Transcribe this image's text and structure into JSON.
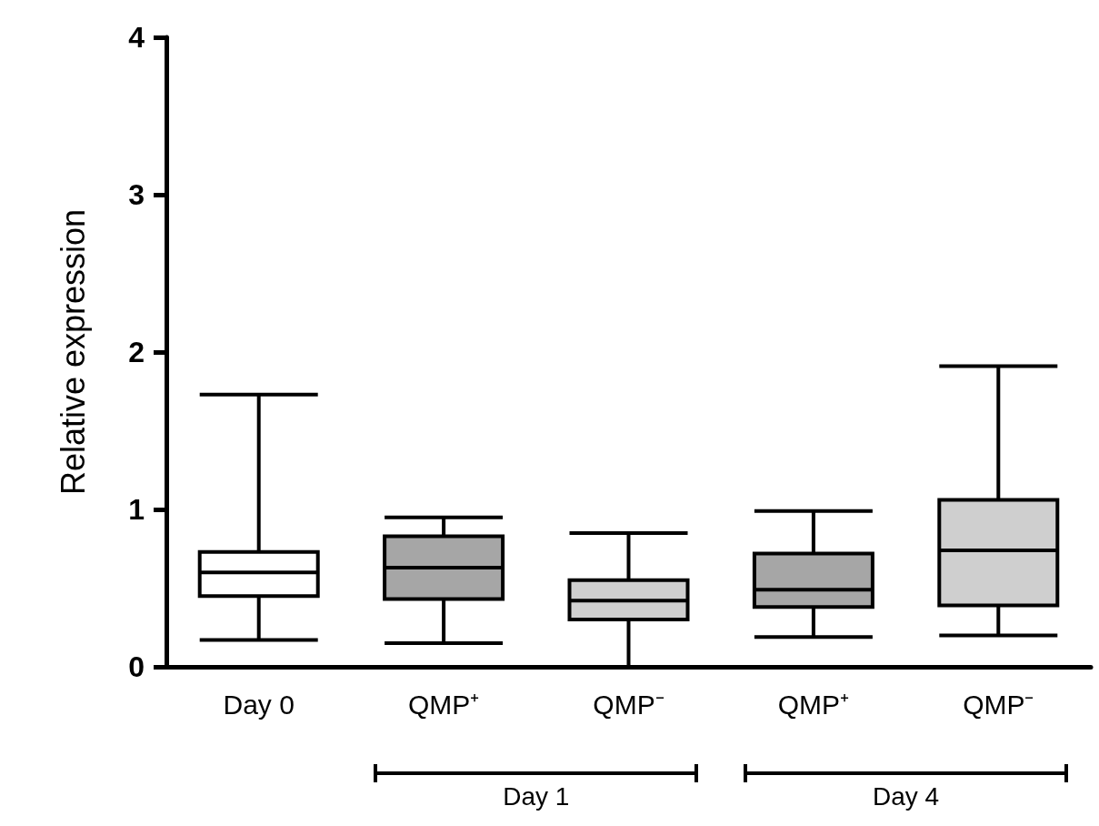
{
  "chart_data": {
    "type": "box",
    "ylabel": "Relative expression",
    "categories": [
      "Day 0",
      "QMP⁺",
      "QMP⁻",
      "QMP⁺",
      "QMP⁻"
    ],
    "boxes": [
      {
        "low": 0.17,
        "q1": 0.45,
        "median": 0.6,
        "q3": 0.73,
        "high": 1.73
      },
      {
        "low": 0.15,
        "q1": 0.43,
        "median": 0.63,
        "q3": 0.83,
        "high": 0.95
      },
      {
        "low": 0,
        "q1": 0.3,
        "median": 0.42,
        "q3": 0.55,
        "high": 0.85
      },
      {
        "low": 0.19,
        "q1": 0.38,
        "median": 0.49,
        "q3": 0.72,
        "high": 0.99
      },
      {
        "low": 0.2,
        "q1": 0.39,
        "median": 0.74,
        "q3": 1.06,
        "high": 1.91
      }
    ],
    "colors": [
      "#ffffff",
      "#a6a6a6",
      "#cfcfcf",
      "#a6a6a6",
      "#cfcfcf"
    ],
    "ylim": [
      0,
      4
    ],
    "yticks": [
      0,
      1,
      2,
      3,
      4
    ],
    "grid": false,
    "annotations": [
      "Day 1",
      "Day 4"
    ]
  }
}
